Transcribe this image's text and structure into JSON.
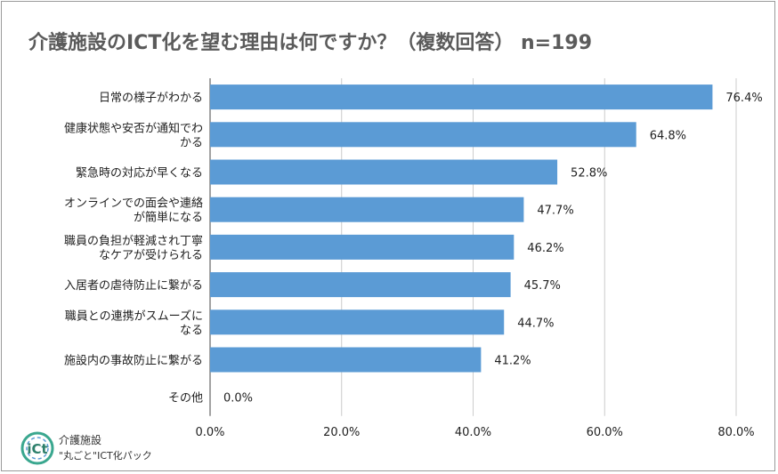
{
  "chart_data": {
    "type": "bar",
    "orientation": "horizontal",
    "title": "介護施設のICT化を望む理由は何ですか？（複数回答） n=199",
    "categories": [
      [
        "日常の様子がわかる"
      ],
      [
        "健康状態や安否が通知でわ",
        "かる"
      ],
      [
        "緊急時の対応が早くなる"
      ],
      [
        "オンラインでの面会や連絡",
        "が簡単になる"
      ],
      [
        "職員の負担が軽減され丁寧",
        "なケアが受けられる"
      ],
      [
        "入居者の虐待防止に繋がる"
      ],
      [
        "職員との連携がスムーズに",
        "なる"
      ],
      [
        "施設内の事故防止に繋がる"
      ],
      [
        "その他"
      ]
    ],
    "values": [
      76.4,
      64.8,
      52.8,
      47.7,
      46.2,
      45.7,
      44.7,
      41.2,
      0.0
    ],
    "value_labels": [
      "76.4%",
      "64.8%",
      "52.8%",
      "47.7%",
      "46.2%",
      "45.7%",
      "44.7%",
      "41.2%",
      "0.0%"
    ],
    "xlim": [
      0,
      80
    ],
    "xticks": [
      0,
      20,
      40,
      60,
      80
    ],
    "xtick_labels": [
      "0.0%",
      "20.0%",
      "40.0%",
      "60.0%",
      "80.0%"
    ],
    "grid": "vertical",
    "legend": "none",
    "bar_color": "#5b9bd5"
  },
  "logo": {
    "icon_text": "iCt",
    "line1": "介護施設",
    "line2": "\"丸ごと\"ICT化パック"
  }
}
